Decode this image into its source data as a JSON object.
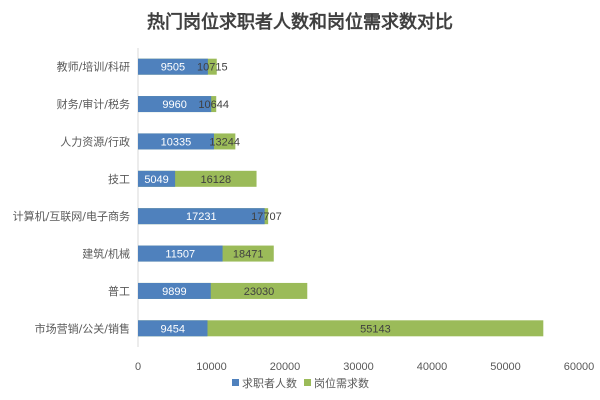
{
  "chart_data": {
    "type": "bar",
    "orientation": "horizontal",
    "overlap": true,
    "title": "热门岗位求职者人数和岗位需求数对比",
    "categories": [
      "教师/培训/科研",
      "财务/审计/税务",
      "人力资源/行政",
      "技工",
      "计算机/互联网/电子商务",
      "建筑/机械",
      "普工",
      "市场营销/公关/销售"
    ],
    "series": [
      {
        "name": "求职者人数",
        "color": "#4f81bd",
        "values": [
          9505,
          9960,
          10335,
          5049,
          17231,
          11507,
          9899,
          9454
        ]
      },
      {
        "name": "岗位需求数",
        "color": "#9bbb59",
        "values": [
          10715,
          10644,
          13244,
          16128,
          17707,
          18471,
          23030,
          55143
        ]
      }
    ],
    "xlim": [
      0,
      60000
    ],
    "xticks": [
      "0",
      "10000",
      "20000",
      "30000",
      "40000",
      "50000",
      "60000"
    ],
    "grid": false,
    "data_labels": true,
    "legend": "bottom"
  }
}
